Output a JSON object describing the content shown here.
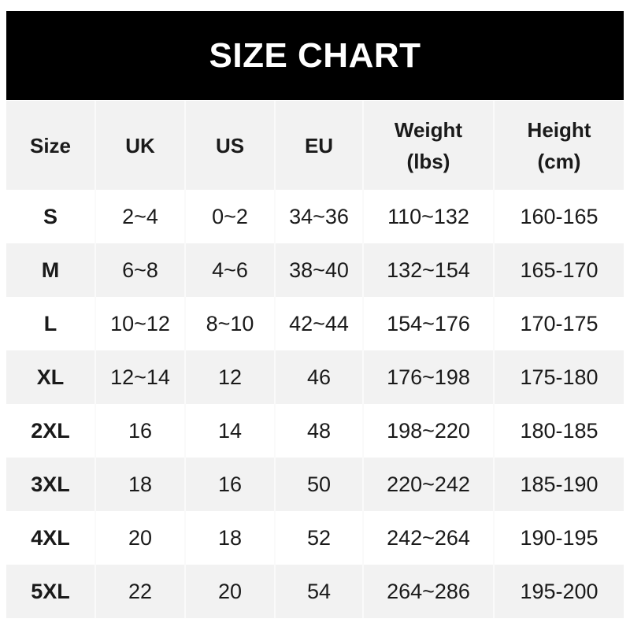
{
  "title": "SIZE CHART",
  "chart_data": {
    "type": "table",
    "title": "SIZE CHART",
    "columns": [
      "Size",
      "UK",
      "US",
      "EU",
      "Weight\n(lbs)",
      "Height\n(cm)"
    ],
    "rows": [
      [
        "S",
        "2~4",
        "0~2",
        "34~36",
        "110~132",
        "160-165"
      ],
      [
        "M",
        "6~8",
        "4~6",
        "38~40",
        "132~154",
        "165-170"
      ],
      [
        "L",
        "10~12",
        "8~10",
        "42~44",
        "154~176",
        "170-175"
      ],
      [
        "XL",
        "12~14",
        "12",
        "46",
        "176~198",
        "175-180"
      ],
      [
        "2XL",
        "16",
        "14",
        "48",
        "198~220",
        "180-185"
      ],
      [
        "3XL",
        "18",
        "16",
        "50",
        "220~242",
        "185-190"
      ],
      [
        "4XL",
        "20",
        "18",
        "52",
        "242~264",
        "190-195"
      ],
      [
        "5XL",
        "22",
        "20",
        "54",
        "264~286",
        "195-200"
      ]
    ]
  },
  "colors": {
    "banner": "#000000",
    "header_row": "#f2f2f2",
    "stripe": "#f2f2f2"
  }
}
